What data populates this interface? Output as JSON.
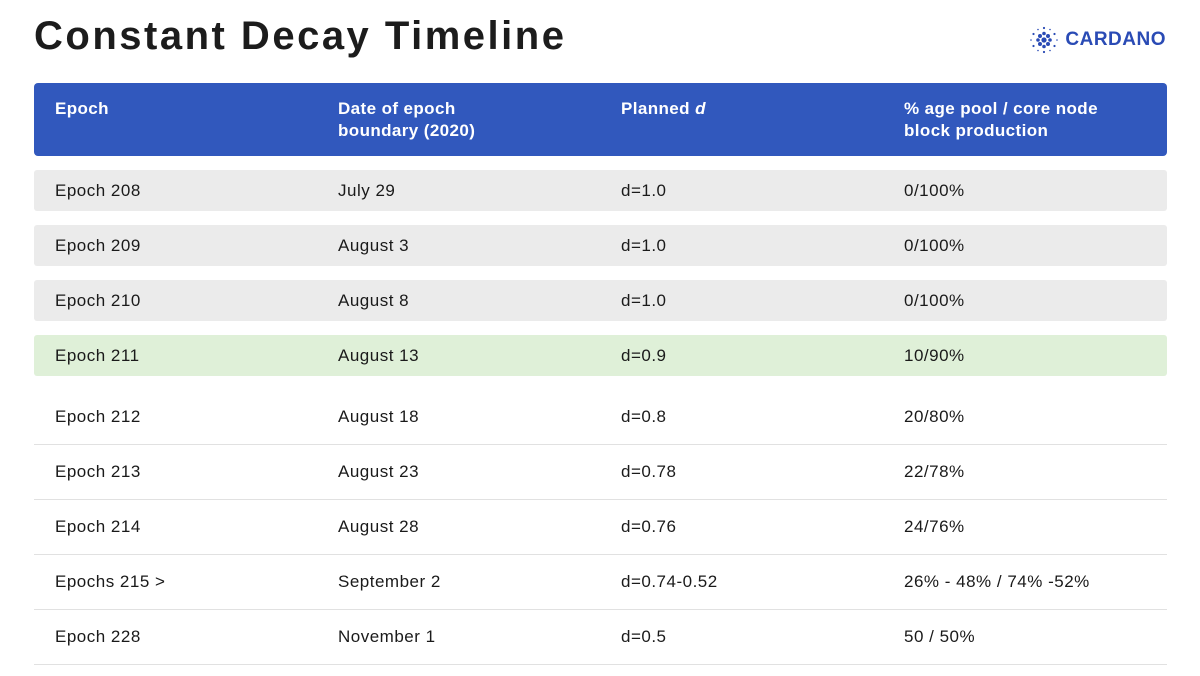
{
  "title": "Constant Decay Timeline",
  "logo": {
    "text": "CARDANO",
    "icon": "cardano-logo-icon",
    "color": "#2a4bb5"
  },
  "colors": {
    "header_bg": "#3158bd",
    "shaded_row": "#ebebeb",
    "highlight_row": "#dff0d8"
  },
  "table": {
    "headers": {
      "epoch": "Epoch",
      "date": "Date of epoch\nboundary (2020)",
      "planned_prefix": "Planned ",
      "planned_var": "d",
      "share": "% age pool / core node\nblock production"
    },
    "rows": [
      {
        "epoch": "Epoch 208",
        "date": "July 29",
        "d": "d=1.0",
        "share": "0/100%",
        "style": "shaded"
      },
      {
        "epoch": "Epoch 209",
        "date": "August 3",
        "d": "d=1.0",
        "share": "0/100%",
        "style": "shaded"
      },
      {
        "epoch": "Epoch 210",
        "date": "August 8",
        "d": "d=1.0",
        "share": "0/100%",
        "style": "shaded"
      },
      {
        "epoch": "Epoch 211",
        "date": "August 13",
        "d": "d=0.9",
        "share": "10/90%",
        "style": "highlight"
      },
      {
        "epoch": "Epoch 212",
        "date": "August 18",
        "d": "d=0.8",
        "share": "20/80%",
        "style": "plain"
      },
      {
        "epoch": "Epoch 213",
        "date": "August 23",
        "d": "d=0.78",
        "share": "22/78%",
        "style": "plain"
      },
      {
        "epoch": "Epoch 214",
        "date": "August 28",
        "d": "d=0.76",
        "share": "24/76%",
        "style": "plain"
      },
      {
        "epoch": "Epochs 215 >",
        "date": "September 2",
        "d": "d=0.74-0.52",
        "share": "26% - 48% / 74% -52%",
        "style": "plain"
      },
      {
        "epoch": "Epoch 228",
        "date": "November 1",
        "d": "d=0.5",
        "share": "50 / 50%",
        "style": "plain"
      }
    ]
  }
}
